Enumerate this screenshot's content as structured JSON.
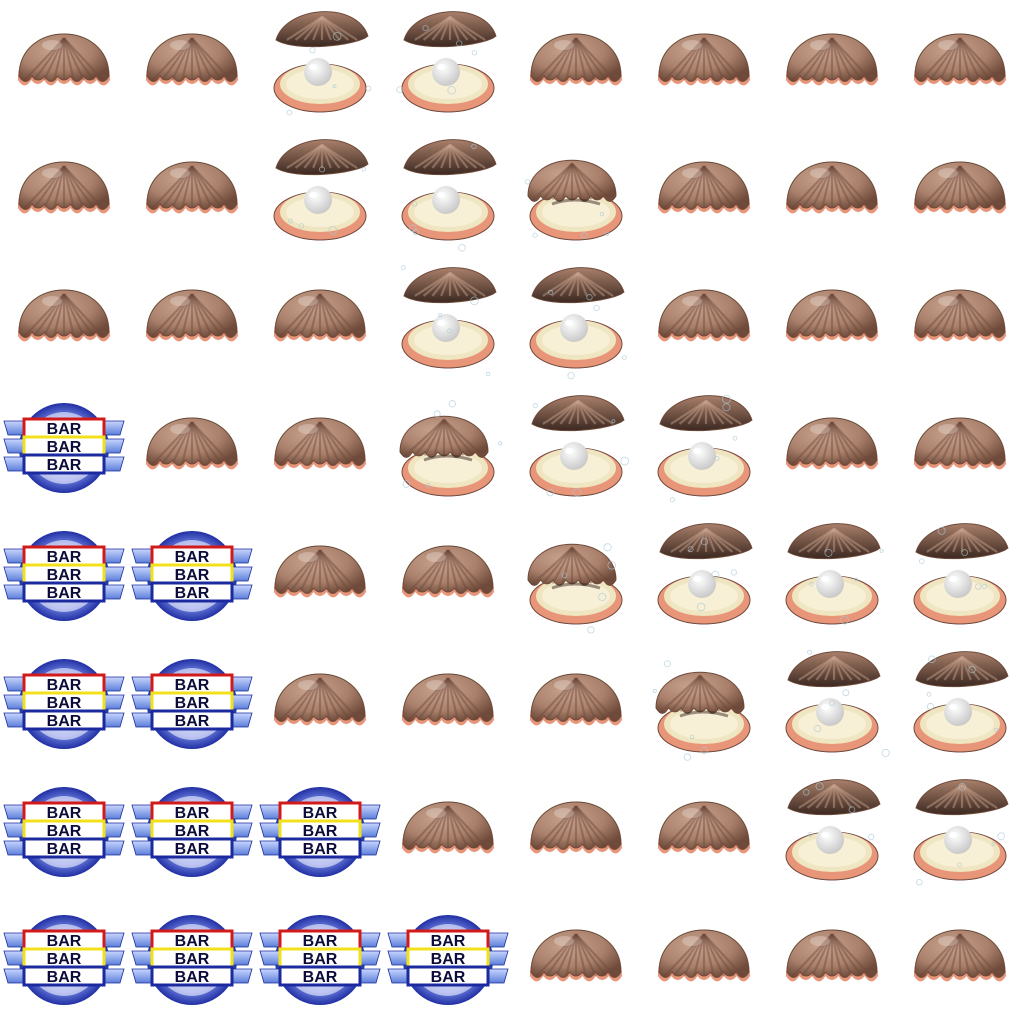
{
  "sheet": {
    "columns": 8,
    "rows": 8,
    "background": "#ffffff",
    "bar_label": "BAR",
    "colors": {
      "shell_light": "#c9a48f",
      "shell_mid": "#a9806b",
      "shell_dark": "#6e4a3a",
      "shell_inner_dark": "#3b2820",
      "lip": "#e8957a",
      "nacre": "#efe5c0",
      "pearl": "#ffffff",
      "bar_blue": "#1b2a9e",
      "bar_red": "#d21a1a",
      "bar_yellow": "#f1e01a",
      "bar_wing": "#5a7fd8"
    },
    "grid": [
      [
        "shell-closed",
        "shell-closed",
        "oyster-open-pearl",
        "oyster-open-pearl",
        "shell-closed",
        "shell-closed",
        "shell-closed",
        "shell-closed"
      ],
      [
        "shell-closed",
        "shell-closed",
        "oyster-open-pearl",
        "oyster-open-pearl",
        "oyster-half-open",
        "shell-closed",
        "shell-closed",
        "shell-closed"
      ],
      [
        "shell-closed",
        "shell-closed",
        "shell-closed",
        "oyster-open-pearl",
        "oyster-open-pearl",
        "shell-closed",
        "shell-closed",
        "shell-closed"
      ],
      [
        "bar-symbol",
        "shell-closed",
        "shell-closed",
        "oyster-half-open",
        "oyster-open-pearl",
        "oyster-open-pearl",
        "shell-closed",
        "shell-closed"
      ],
      [
        "bar-symbol",
        "bar-symbol",
        "shell-closed",
        "shell-closed",
        "oyster-half-open",
        "oyster-open-pearl",
        "oyster-open-pearl",
        "oyster-open-pearl"
      ],
      [
        "bar-symbol",
        "bar-symbol",
        "shell-closed",
        "shell-closed",
        "shell-closed",
        "oyster-half-open",
        "oyster-open-pearl",
        "oyster-open-pearl"
      ],
      [
        "bar-symbol",
        "bar-symbol",
        "bar-symbol",
        "shell-closed",
        "shell-closed",
        "shell-closed",
        "oyster-open-pearl",
        "oyster-open-pearl"
      ],
      [
        "bar-symbol",
        "bar-symbol",
        "bar-symbol",
        "bar-symbol",
        "shell-closed",
        "shell-closed",
        "shell-closed",
        "shell-closed"
      ]
    ]
  }
}
